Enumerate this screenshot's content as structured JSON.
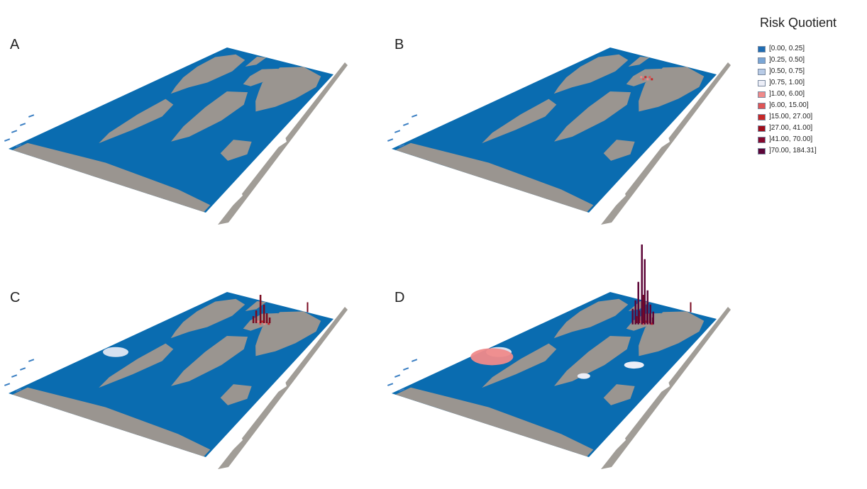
{
  "panels": [
    {
      "label": "A",
      "hotspot_level": 0
    },
    {
      "label": "B",
      "hotspot_level": 1
    },
    {
      "label": "C",
      "hotspot_level": 2
    },
    {
      "label": "D",
      "hotspot_level": 3
    }
  ],
  "legend": {
    "title": "Risk Quotient",
    "items": [
      {
        "label": "[0.00, 0.25]",
        "color": "#1f6db3"
      },
      {
        "label": "]0.25, 0.50]",
        "color": "#7aa6d6"
      },
      {
        "label": "]0.50, 0.75]",
        "color": "#b8cbe6"
      },
      {
        "label": "]0.75, 1.00]",
        "color": "#eceef7"
      },
      {
        "label": "]1.00, 6.00]",
        "color": "#f08a8a"
      },
      {
        "label": "]6.00, 15.00]",
        "color": "#e05555"
      },
      {
        "label": "]15.00, 27.00]",
        "color": "#c82828"
      },
      {
        "label": "]27.00, 41.00]",
        "color": "#a00d1a"
      },
      {
        "label": "]41.00, 70.00]",
        "color": "#86092e"
      },
      {
        "label": "]70.00, 184.31]",
        "color": "#5c0638"
      }
    ]
  },
  "colors": {
    "ocean": "#0a6cb0",
    "land": "#9a9590",
    "strip": "#a19d97",
    "bar": "#7a0a20"
  }
}
